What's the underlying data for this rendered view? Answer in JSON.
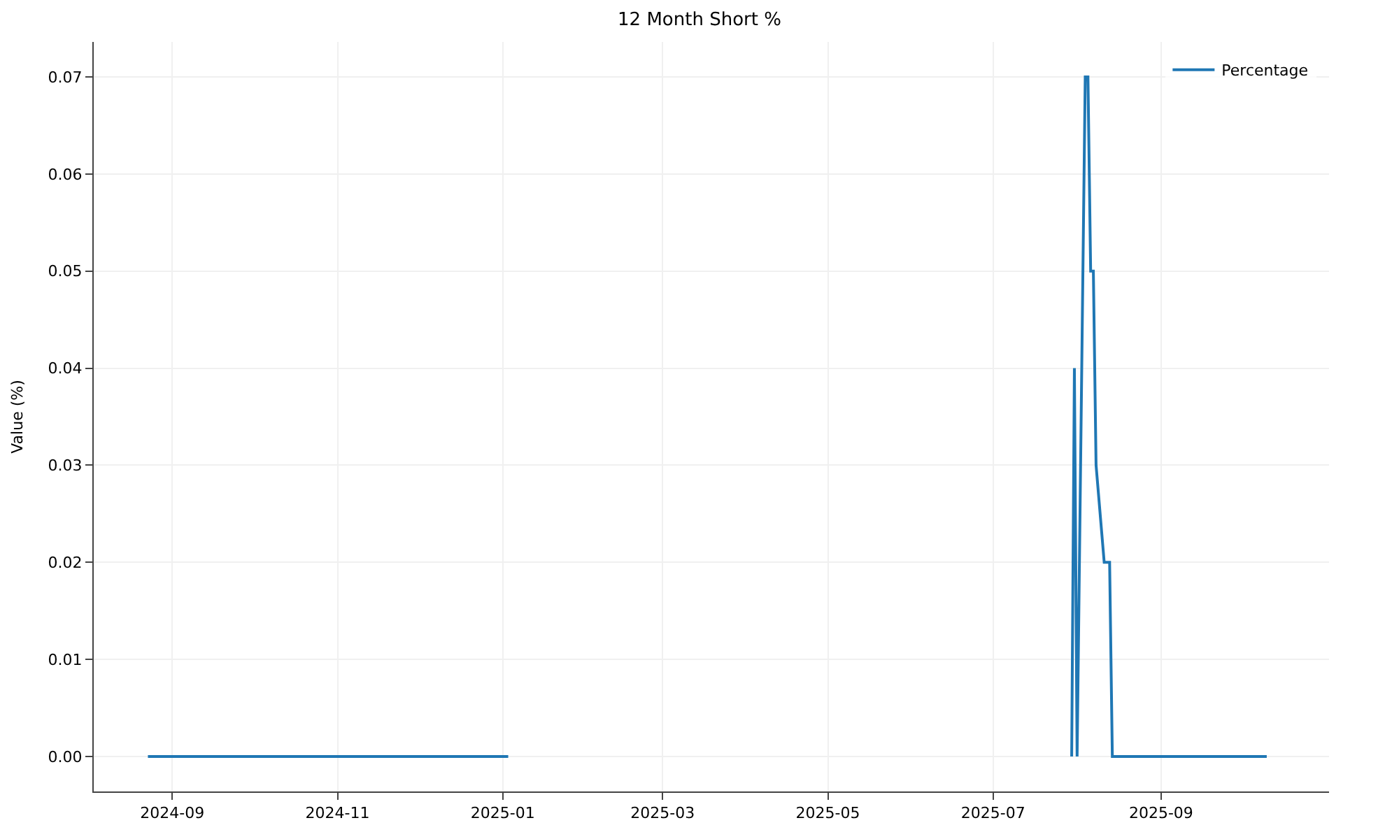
{
  "chart_data": {
    "type": "line",
    "title": "12 Month Short %",
    "ylabel": "Value (%)",
    "x": [
      "2024-08-23",
      "2025-01-03",
      "2025-01-04",
      "2025-07-30",
      "2025-07-31",
      "2025-08-01",
      "2025-08-04",
      "2025-08-05",
      "2025-08-06",
      "2025-08-07",
      "2025-08-08",
      "2025-08-11",
      "2025-08-13",
      "2025-08-14",
      "2025-10-10"
    ],
    "series": [
      {
        "name": "Percentage",
        "color": "#1f77b4",
        "values": [
          0,
          0,
          null,
          0,
          0.04,
          0,
          0.07,
          0.07,
          0.05,
          0.05,
          0.03,
          0.02,
          0.02,
          0,
          0
        ]
      }
    ],
    "xlim": [
      "2024-08-03",
      "2025-11-02"
    ],
    "ylim": [
      -0.0036,
      0.0736
    ],
    "xticks": [
      {
        "value": "2024-09-01",
        "label": "2024-09"
      },
      {
        "value": "2024-11-01",
        "label": "2024-11"
      },
      {
        "value": "2025-01-01",
        "label": "2025-01"
      },
      {
        "value": "2025-03-01",
        "label": "2025-03"
      },
      {
        "value": "2025-05-01",
        "label": "2025-05"
      },
      {
        "value": "2025-07-01",
        "label": "2025-07"
      },
      {
        "value": "2025-09-01",
        "label": "2025-09"
      }
    ],
    "yticks": [
      {
        "value": 0,
        "label": "0.00"
      },
      {
        "value": 0.01,
        "label": "0.01"
      },
      {
        "value": 0.02,
        "label": "0.02"
      },
      {
        "value": 0.03,
        "label": "0.03"
      },
      {
        "value": 0.04,
        "label": "0.04"
      },
      {
        "value": 0.05,
        "label": "0.05"
      },
      {
        "value": 0.06,
        "label": "0.06"
      },
      {
        "value": 0.07,
        "label": "0.07"
      }
    ],
    "grid": true,
    "legend": "top right",
    "line_style": "solid",
    "marker": "none"
  }
}
